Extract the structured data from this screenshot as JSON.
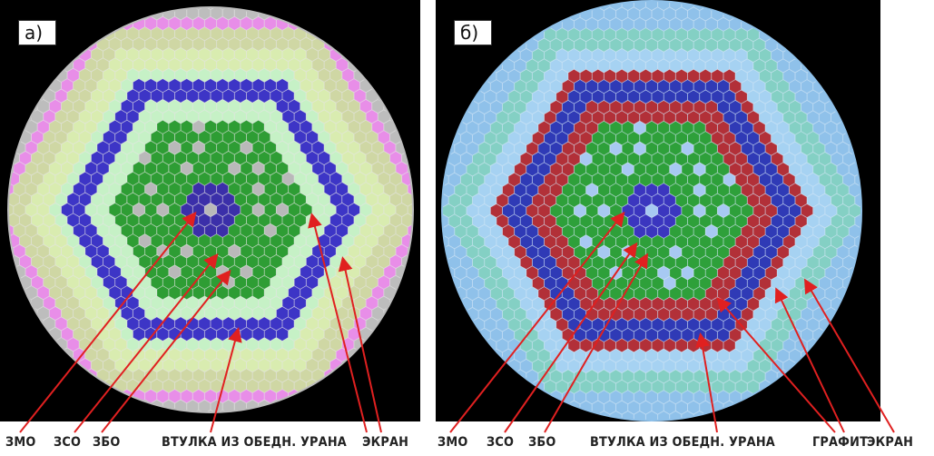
{
  "panels": [
    {
      "id": "a",
      "tag": "а)",
      "colors": {
        "background": "#000000",
        "outer": "#bdbdbd",
        "pink": "#e88ee8",
        "ring1": "#cfd7a4",
        "ring2": "#d9ecb0",
        "ring3": "#c6f1c6",
        "blanket": "#3d35c6",
        "core": "#2e9d34",
        "zmo": "#3b2fa9",
        "zso": "#b9b9b9"
      },
      "labels": [
        "ЗМО",
        "ЗСО",
        "ЗБО",
        "ВТУЛКА ИЗ ОБЕДН. УРАНА",
        "ЭКРАН"
      ]
    },
    {
      "id": "b",
      "tag": "б)",
      "colors": {
        "background": "#000000",
        "outer": "#8fc1ea",
        "ring1": "#84d0c4",
        "ring2": "#a6d2f2",
        "blanket_red": "#b23038",
        "blanket_blue": "#2f3ab6",
        "core": "#2ea03a",
        "zmo": "#3b36bf",
        "zso": "#a7c9f2"
      },
      "labels": [
        "ЗМО",
        "ЗСО",
        "ЗБО",
        "ВТУЛКА ИЗ ОБЕДН. УРАНА",
        "ГРАФИТ",
        "ЭКРАН"
      ]
    }
  ],
  "arrow_color": "#e02020"
}
